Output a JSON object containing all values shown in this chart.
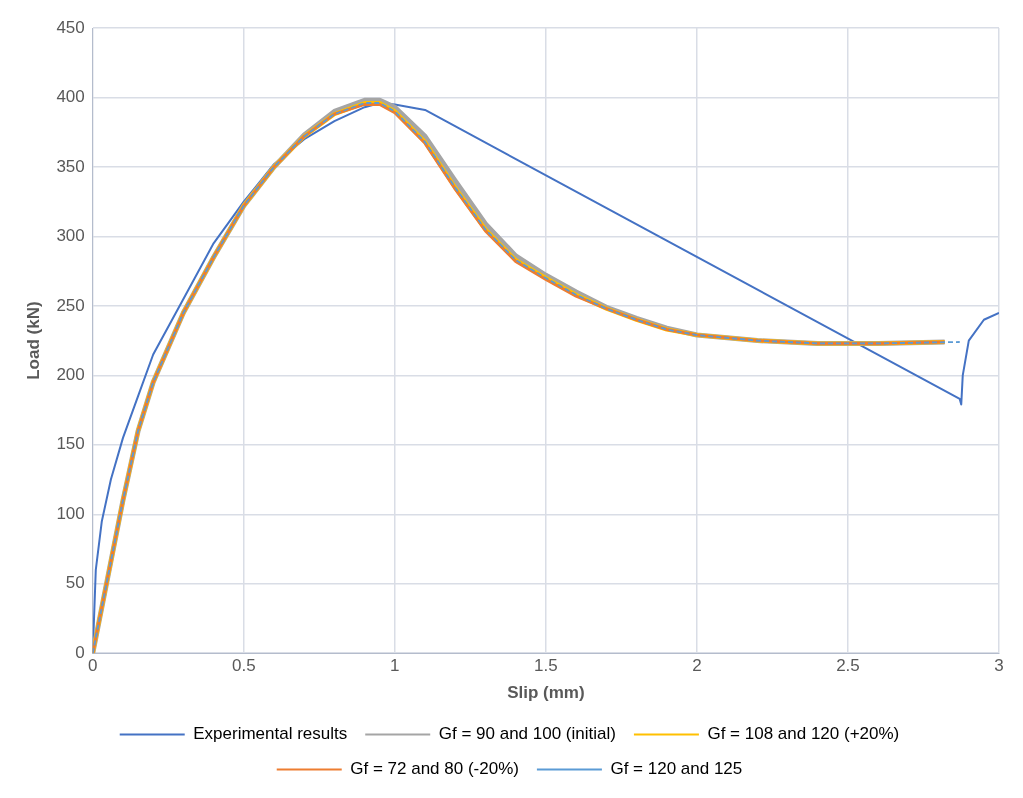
{
  "chart_data": {
    "type": "line",
    "xlabel": "Slip (mm)",
    "ylabel": "Load (kN)",
    "xlim": [
      0,
      3
    ],
    "xticks": [
      0,
      0.5,
      1,
      1.5,
      2,
      2.5,
      3
    ],
    "ylim": [
      0,
      450
    ],
    "yticks": [
      0,
      50,
      100,
      150,
      200,
      250,
      300,
      350,
      400,
      450
    ],
    "grid": true,
    "legend": "bottom",
    "marker": "none",
    "series": [
      {
        "name": "Experimental results",
        "color": "#4472c4",
        "line_style": "solid",
        "x": [
          0,
          0.01,
          0.03,
          0.06,
          0.1,
          0.15,
          0.2,
          0.3,
          0.4,
          0.5,
          0.6,
          0.7,
          0.8,
          0.9,
          0.95,
          1.0,
          1.1,
          2.87,
          2.875,
          2.88,
          2.9,
          2.95,
          3.0
        ],
        "values": [
          0,
          60,
          95,
          125,
          155,
          185,
          215,
          255,
          295,
          325,
          352,
          370,
          383,
          393,
          396,
          395,
          391,
          183,
          179,
          200,
          225,
          240,
          245
        ]
      },
      {
        "name": "Gf = 90 and 100 (initial)",
        "color": "#a5a5a5",
        "line_style": "solid",
        "x": [
          0,
          0.05,
          0.1,
          0.15,
          0.2,
          0.3,
          0.4,
          0.5,
          0.6,
          0.7,
          0.8,
          0.9,
          0.95,
          1.0,
          1.1,
          1.2,
          1.3,
          1.4,
          1.5,
          1.6,
          1.7,
          1.8,
          1.9,
          2.0,
          2.2,
          2.4,
          2.6,
          2.82
        ],
        "values": [
          0,
          55,
          110,
          160,
          195,
          245,
          285,
          322,
          350,
          373,
          390,
          398,
          398,
          393,
          372,
          340,
          309,
          286,
          272,
          260,
          249,
          241,
          234,
          229,
          225,
          223,
          223,
          224
        ]
      },
      {
        "name": "Gf = 108 and 120 (+20%)",
        "color": "#ffc000",
        "line_style": "solid",
        "x": [
          0,
          0.05,
          0.1,
          0.15,
          0.2,
          0.3,
          0.4,
          0.5,
          0.6,
          0.7,
          0.8,
          0.9,
          0.95,
          1.0,
          1.1,
          1.2,
          1.3,
          1.4,
          1.5,
          1.6,
          1.7,
          1.8,
          1.9,
          2.0,
          2.2,
          2.4,
          2.6,
          2.82
        ],
        "values": [
          0,
          55,
          110,
          160,
          195,
          245,
          285,
          322,
          350,
          372,
          388,
          396,
          396,
          390,
          368,
          335,
          305,
          283,
          270,
          258,
          248,
          240,
          233,
          229,
          225,
          223,
          223,
          224
        ]
      },
      {
        "name": "Gf = 72 and 80 (-20%)",
        "color": "#ed7d31",
        "line_style": "solid",
        "x": [
          0,
          0.05,
          0.1,
          0.15,
          0.2,
          0.3,
          0.4,
          0.5,
          0.6,
          0.7,
          0.8,
          0.9,
          0.95,
          1.0,
          1.1,
          1.2,
          1.3,
          1.4,
          1.5,
          1.6,
          1.7,
          1.8,
          1.9,
          2.0,
          2.2,
          2.4,
          2.6,
          2.82
        ],
        "values": [
          0,
          55,
          110,
          160,
          195,
          245,
          285,
          322,
          350,
          372,
          388,
          395,
          395,
          389,
          367,
          334,
          304,
          282,
          269,
          257,
          248,
          240,
          233,
          229,
          225,
          223,
          223,
          224
        ]
      },
      {
        "name": "Gf = 120 and 125",
        "color": "#5b9bd5",
        "line_style": "dashed",
        "x": [
          0,
          0.05,
          0.1,
          0.15,
          0.2,
          0.3,
          0.4,
          0.5,
          0.6,
          0.7,
          0.8,
          0.9,
          0.95,
          1.0,
          1.1,
          1.2,
          1.3,
          1.4,
          1.5,
          1.6,
          1.7,
          1.8,
          1.9,
          2.0,
          2.2,
          2.4,
          2.6,
          2.87
        ],
        "values": [
          0,
          55,
          110,
          160,
          195,
          245,
          285,
          322,
          350,
          372,
          388,
          396,
          396,
          390,
          368,
          335,
          305,
          283,
          270,
          258,
          248,
          240,
          233,
          229,
          225,
          223,
          223,
          224
        ]
      }
    ]
  }
}
